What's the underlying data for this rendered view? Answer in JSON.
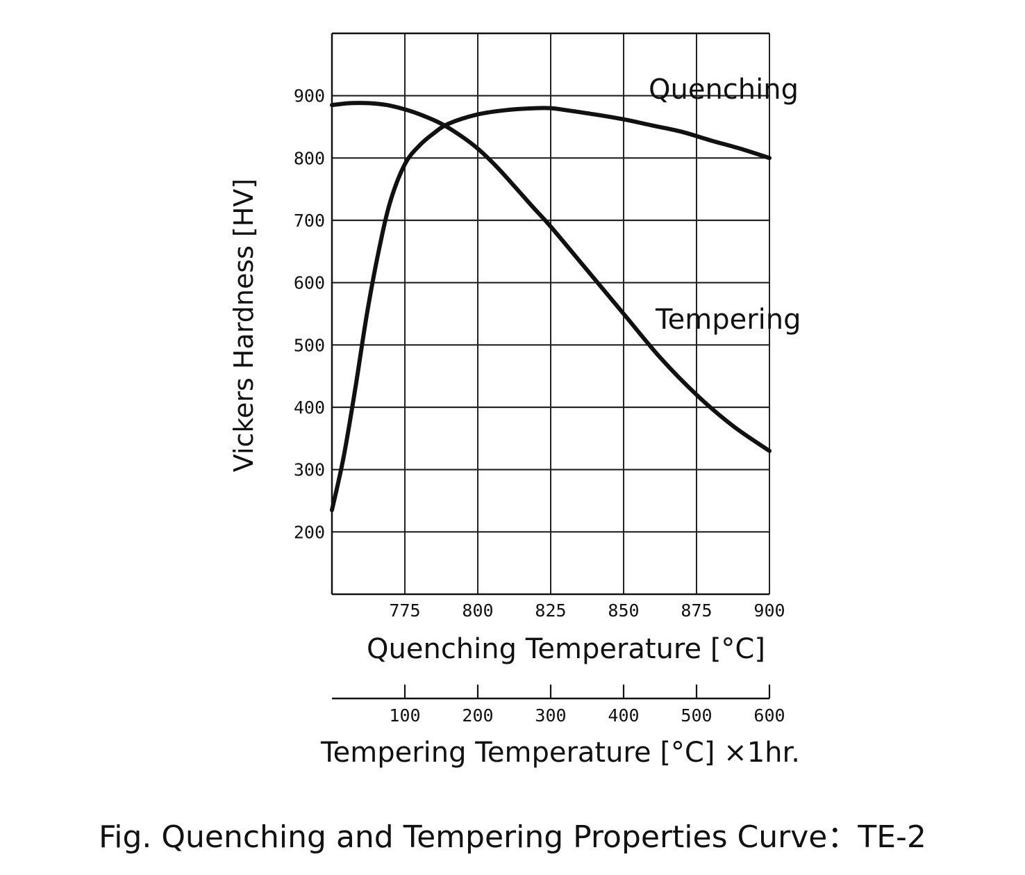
{
  "chart_data": {
    "type": "line",
    "title": "Fig. Quenching and Tempering Properties Curve：TE-2",
    "ylabel": "Vickers Hardness [HV]",
    "ylim": [
      100,
      1000
    ],
    "yticks": [
      "200",
      "300",
      "400",
      "500",
      "600",
      "700",
      "800",
      "900"
    ],
    "grid": true,
    "x_axes": {
      "quenching": {
        "label": "Quenching Temperature [°C]",
        "range": [
          750,
          900
        ],
        "ticks": [
          "775",
          "800",
          "825",
          "850",
          "875",
          "900"
        ]
      },
      "tempering": {
        "label": "Tempering Temperature [°C] ×1hr.",
        "range": [
          0,
          600
        ],
        "ticks": [
          "100",
          "200",
          "300",
          "400",
          "500",
          "600"
        ]
      }
    },
    "series": [
      {
        "name": "Quenching",
        "x_axis": "quenching",
        "x": [
          750,
          754,
          758,
          762,
          766,
          770,
          775,
          780,
          785,
          790,
          800,
          810,
          820,
          825,
          830,
          840,
          850,
          860,
          870,
          880,
          890,
          900
        ],
        "y": [
          235,
          320,
          430,
          550,
          650,
          730,
          790,
          820,
          840,
          855,
          870,
          877,
          880,
          880,
          877,
          870,
          862,
          852,
          842,
          828,
          815,
          800
        ]
      },
      {
        "name": "Tempering",
        "x_axis": "tempering",
        "x": [
          0,
          25,
          50,
          75,
          100,
          125,
          150,
          175,
          200,
          225,
          250,
          275,
          300,
          350,
          400,
          450,
          500,
          550,
          600
        ],
        "y": [
          885,
          888,
          888,
          885,
          878,
          868,
          855,
          837,
          815,
          787,
          755,
          722,
          690,
          620,
          550,
          480,
          420,
          370,
          330
        ]
      }
    ]
  }
}
